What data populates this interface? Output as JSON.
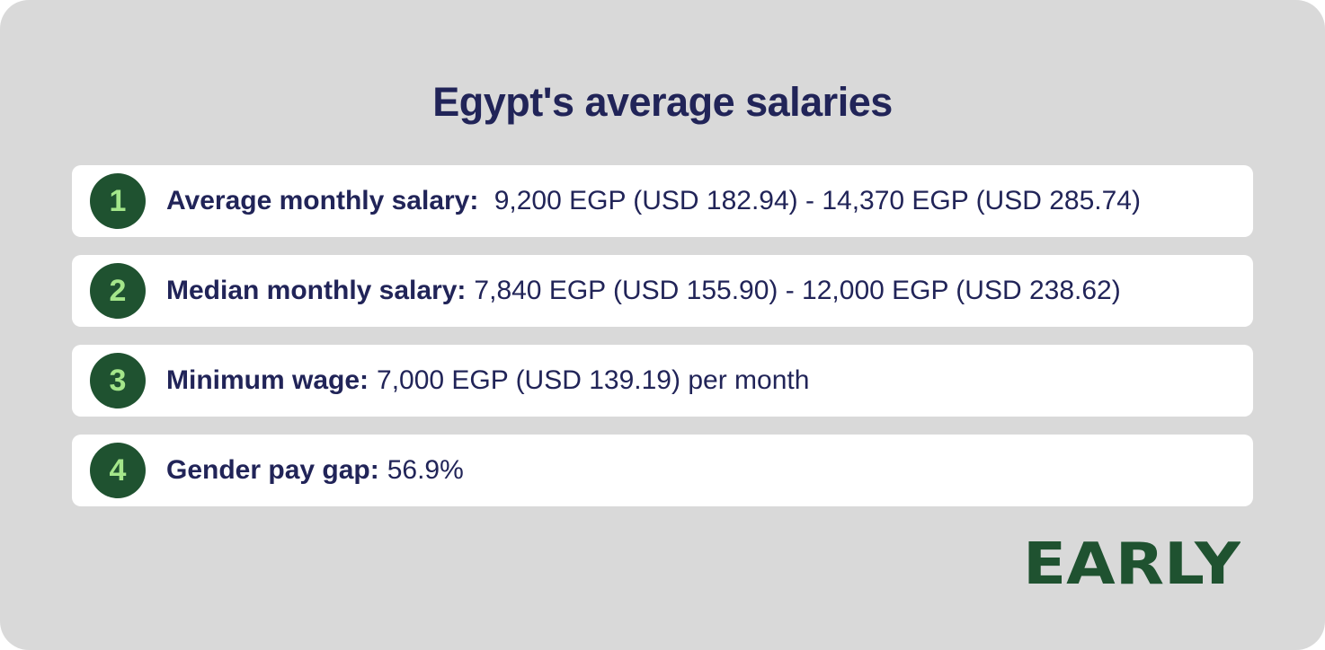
{
  "title": "Egypt's average salaries",
  "items": [
    {
      "number": "1",
      "label": "Average monthly salary:",
      "value": " 9,200 EGP (USD 182.94) - 14,370 EGP (USD 285.74)"
    },
    {
      "number": "2",
      "label": "Median monthly salary:",
      "value": "7,840 EGP (USD 155.90) - 12,000 EGP (USD 238.62)"
    },
    {
      "number": "3",
      "label": "Minimum wage:",
      "value": "7,000 EGP (USD 139.19) per month"
    },
    {
      "number": "4",
      "label": "Gender pay gap:",
      "value": "56.9%"
    }
  ],
  "logo": {
    "text": "EARLY"
  },
  "colors": {
    "background": "#d9d9d9",
    "row": "#ffffff",
    "text": "#212458",
    "badge": "#1f5230",
    "badge_number": "#a4e68a",
    "logo": "#1f5230"
  }
}
